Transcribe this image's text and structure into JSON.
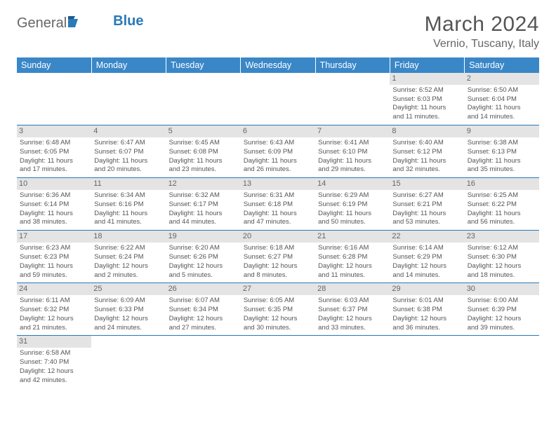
{
  "brand": {
    "part1": "General",
    "part2": "Blue"
  },
  "title": "March 2024",
  "location": "Vernio, Tuscany, Italy",
  "colors": {
    "header_bg": "#3a87c8",
    "header_text": "#ffffff",
    "daynum_bg": "#e4e4e4",
    "border": "#2a7ab8",
    "text": "#555555",
    "brand_blue": "#2a7ab8"
  },
  "typography": {
    "title_fontsize": 30,
    "location_fontsize": 16,
    "dayheader_fontsize": 12.5,
    "cell_fontsize": 9.5
  },
  "day_headers": [
    "Sunday",
    "Monday",
    "Tuesday",
    "Wednesday",
    "Thursday",
    "Friday",
    "Saturday"
  ],
  "weeks": [
    [
      {
        "empty": true
      },
      {
        "empty": true
      },
      {
        "empty": true
      },
      {
        "empty": true
      },
      {
        "empty": true
      },
      {
        "day": "1",
        "sunrise": "Sunrise: 6:52 AM",
        "sunset": "Sunset: 6:03 PM",
        "daylight1": "Daylight: 11 hours",
        "daylight2": "and 11 minutes."
      },
      {
        "day": "2",
        "sunrise": "Sunrise: 6:50 AM",
        "sunset": "Sunset: 6:04 PM",
        "daylight1": "Daylight: 11 hours",
        "daylight2": "and 14 minutes."
      }
    ],
    [
      {
        "day": "3",
        "sunrise": "Sunrise: 6:48 AM",
        "sunset": "Sunset: 6:05 PM",
        "daylight1": "Daylight: 11 hours",
        "daylight2": "and 17 minutes."
      },
      {
        "day": "4",
        "sunrise": "Sunrise: 6:47 AM",
        "sunset": "Sunset: 6:07 PM",
        "daylight1": "Daylight: 11 hours",
        "daylight2": "and 20 minutes."
      },
      {
        "day": "5",
        "sunrise": "Sunrise: 6:45 AM",
        "sunset": "Sunset: 6:08 PM",
        "daylight1": "Daylight: 11 hours",
        "daylight2": "and 23 minutes."
      },
      {
        "day": "6",
        "sunrise": "Sunrise: 6:43 AM",
        "sunset": "Sunset: 6:09 PM",
        "daylight1": "Daylight: 11 hours",
        "daylight2": "and 26 minutes."
      },
      {
        "day": "7",
        "sunrise": "Sunrise: 6:41 AM",
        "sunset": "Sunset: 6:10 PM",
        "daylight1": "Daylight: 11 hours",
        "daylight2": "and 29 minutes."
      },
      {
        "day": "8",
        "sunrise": "Sunrise: 6:40 AM",
        "sunset": "Sunset: 6:12 PM",
        "daylight1": "Daylight: 11 hours",
        "daylight2": "and 32 minutes."
      },
      {
        "day": "9",
        "sunrise": "Sunrise: 6:38 AM",
        "sunset": "Sunset: 6:13 PM",
        "daylight1": "Daylight: 11 hours",
        "daylight2": "and 35 minutes."
      }
    ],
    [
      {
        "day": "10",
        "sunrise": "Sunrise: 6:36 AM",
        "sunset": "Sunset: 6:14 PM",
        "daylight1": "Daylight: 11 hours",
        "daylight2": "and 38 minutes."
      },
      {
        "day": "11",
        "sunrise": "Sunrise: 6:34 AM",
        "sunset": "Sunset: 6:16 PM",
        "daylight1": "Daylight: 11 hours",
        "daylight2": "and 41 minutes."
      },
      {
        "day": "12",
        "sunrise": "Sunrise: 6:32 AM",
        "sunset": "Sunset: 6:17 PM",
        "daylight1": "Daylight: 11 hours",
        "daylight2": "and 44 minutes."
      },
      {
        "day": "13",
        "sunrise": "Sunrise: 6:31 AM",
        "sunset": "Sunset: 6:18 PM",
        "daylight1": "Daylight: 11 hours",
        "daylight2": "and 47 minutes."
      },
      {
        "day": "14",
        "sunrise": "Sunrise: 6:29 AM",
        "sunset": "Sunset: 6:19 PM",
        "daylight1": "Daylight: 11 hours",
        "daylight2": "and 50 minutes."
      },
      {
        "day": "15",
        "sunrise": "Sunrise: 6:27 AM",
        "sunset": "Sunset: 6:21 PM",
        "daylight1": "Daylight: 11 hours",
        "daylight2": "and 53 minutes."
      },
      {
        "day": "16",
        "sunrise": "Sunrise: 6:25 AM",
        "sunset": "Sunset: 6:22 PM",
        "daylight1": "Daylight: 11 hours",
        "daylight2": "and 56 minutes."
      }
    ],
    [
      {
        "day": "17",
        "sunrise": "Sunrise: 6:23 AM",
        "sunset": "Sunset: 6:23 PM",
        "daylight1": "Daylight: 11 hours",
        "daylight2": "and 59 minutes."
      },
      {
        "day": "18",
        "sunrise": "Sunrise: 6:22 AM",
        "sunset": "Sunset: 6:24 PM",
        "daylight1": "Daylight: 12 hours",
        "daylight2": "and 2 minutes."
      },
      {
        "day": "19",
        "sunrise": "Sunrise: 6:20 AM",
        "sunset": "Sunset: 6:26 PM",
        "daylight1": "Daylight: 12 hours",
        "daylight2": "and 5 minutes."
      },
      {
        "day": "20",
        "sunrise": "Sunrise: 6:18 AM",
        "sunset": "Sunset: 6:27 PM",
        "daylight1": "Daylight: 12 hours",
        "daylight2": "and 8 minutes."
      },
      {
        "day": "21",
        "sunrise": "Sunrise: 6:16 AM",
        "sunset": "Sunset: 6:28 PM",
        "daylight1": "Daylight: 12 hours",
        "daylight2": "and 11 minutes."
      },
      {
        "day": "22",
        "sunrise": "Sunrise: 6:14 AM",
        "sunset": "Sunset: 6:29 PM",
        "daylight1": "Daylight: 12 hours",
        "daylight2": "and 14 minutes."
      },
      {
        "day": "23",
        "sunrise": "Sunrise: 6:12 AM",
        "sunset": "Sunset: 6:30 PM",
        "daylight1": "Daylight: 12 hours",
        "daylight2": "and 18 minutes."
      }
    ],
    [
      {
        "day": "24",
        "sunrise": "Sunrise: 6:11 AM",
        "sunset": "Sunset: 6:32 PM",
        "daylight1": "Daylight: 12 hours",
        "daylight2": "and 21 minutes."
      },
      {
        "day": "25",
        "sunrise": "Sunrise: 6:09 AM",
        "sunset": "Sunset: 6:33 PM",
        "daylight1": "Daylight: 12 hours",
        "daylight2": "and 24 minutes."
      },
      {
        "day": "26",
        "sunrise": "Sunrise: 6:07 AM",
        "sunset": "Sunset: 6:34 PM",
        "daylight1": "Daylight: 12 hours",
        "daylight2": "and 27 minutes."
      },
      {
        "day": "27",
        "sunrise": "Sunrise: 6:05 AM",
        "sunset": "Sunset: 6:35 PM",
        "daylight1": "Daylight: 12 hours",
        "daylight2": "and 30 minutes."
      },
      {
        "day": "28",
        "sunrise": "Sunrise: 6:03 AM",
        "sunset": "Sunset: 6:37 PM",
        "daylight1": "Daylight: 12 hours",
        "daylight2": "and 33 minutes."
      },
      {
        "day": "29",
        "sunrise": "Sunrise: 6:01 AM",
        "sunset": "Sunset: 6:38 PM",
        "daylight1": "Daylight: 12 hours",
        "daylight2": "and 36 minutes."
      },
      {
        "day": "30",
        "sunrise": "Sunrise: 6:00 AM",
        "sunset": "Sunset: 6:39 PM",
        "daylight1": "Daylight: 12 hours",
        "daylight2": "and 39 minutes."
      }
    ],
    [
      {
        "day": "31",
        "sunrise": "Sunrise: 6:58 AM",
        "sunset": "Sunset: 7:40 PM",
        "daylight1": "Daylight: 12 hours",
        "daylight2": "and 42 minutes."
      },
      {
        "empty": true
      },
      {
        "empty": true
      },
      {
        "empty": true
      },
      {
        "empty": true
      },
      {
        "empty": true
      },
      {
        "empty": true
      }
    ]
  ]
}
